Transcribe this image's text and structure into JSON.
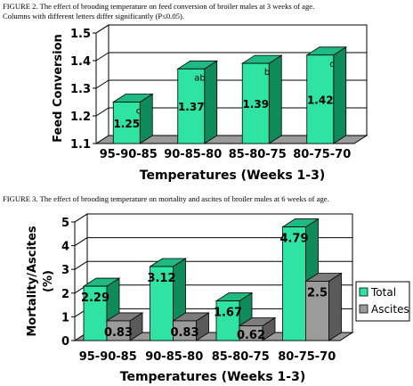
{
  "figure2": {
    "caption_line1": "FIGURE 2. The effect of brooding temperature on feed conversion of broiler males at 3 weeks of age.",
    "caption_line2": "Columns with different letters differ significantly (P≤0.05)."
  },
  "figure3": {
    "caption": "FIGURE 3. The effect of brooding temperature on mortality and ascites of broiler males at 6 weeks of age."
  },
  "colors": {
    "total_front": "#2fe3a3",
    "total_side": "#0f8a5a",
    "total_top": "#1fb982",
    "ascites_front": "#9b9b9b",
    "ascites_side": "#5a5a5a",
    "ascites_top": "#7c7c7c",
    "floor": "#9a9a9a"
  },
  "chart_data": [
    {
      "type": "bar",
      "title": "",
      "xlabel": "Temperatures (Weeks 1-3)",
      "ylabel": "Feed Conversion",
      "categories": [
        "95-90-85",
        "90-85-80",
        "85-80-75",
        "80-75-70"
      ],
      "values": [
        1.25,
        1.37,
        1.39,
        1.42
      ],
      "value_labels": [
        "1.25",
        "1.37",
        "1.39",
        "1.42"
      ],
      "significance_letters": [
        "c",
        "ab",
        "b",
        "c"
      ],
      "ylim": [
        1.1,
        1.5
      ],
      "yticks": [
        "1.1",
        "1.2",
        "1.3",
        "1.4",
        "1.5"
      ],
      "grid": true,
      "three_d": true
    },
    {
      "type": "bar",
      "title": "",
      "xlabel": "Temperatures (Weeks 1-3)",
      "ylabel": "Mortality/Ascites (%)",
      "ylabel_line1": "Mortality/Ascites",
      "ylabel_line2": "(%)",
      "categories": [
        "95-90-85",
        "90-85-80",
        "85-80-75",
        "80-75-70"
      ],
      "series": [
        {
          "name": "Total",
          "values": [
            2.29,
            3.12,
            1.67,
            4.79
          ],
          "labels": [
            "2.29",
            "3.12",
            "1.67",
            "4.79"
          ]
        },
        {
          "name": "Ascites",
          "values": [
            0.83,
            0.83,
            0.62,
            2.5
          ],
          "labels": [
            "0.83",
            "0.83",
            "0.62",
            "2.5"
          ]
        }
      ],
      "ylim": [
        0,
        5
      ],
      "yticks": [
        "0",
        "1",
        "2",
        "3",
        "4",
        "5"
      ],
      "grid": true,
      "legend": "right",
      "three_d": true
    }
  ]
}
